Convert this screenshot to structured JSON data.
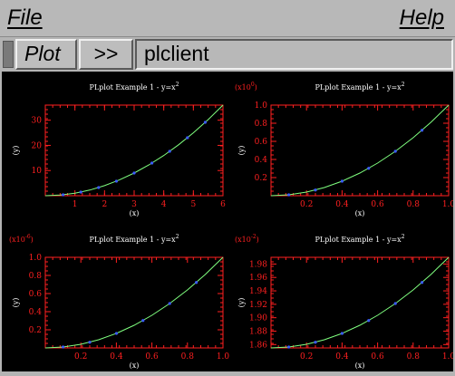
{
  "menubar": {
    "file_label": "File",
    "help_label": "Help"
  },
  "toolbar": {
    "plot_button": "Plot",
    "next_button": ">>",
    "client_label": "plclient"
  },
  "colors": {
    "axes": "#ff2020",
    "curve": "#7fff7f",
    "points": "#3b5bff",
    "title": "#ffffff",
    "background": "#000000"
  },
  "chart_data": [
    {
      "type": "line",
      "title": "PLplot Example 1 - y=x",
      "title_sup": "2",
      "xlabel": "(x)",
      "ylabel": "(y)",
      "xlim": [
        0,
        6
      ],
      "ylim": [
        0,
        36
      ],
      "xticks": [
        "1",
        "2",
        "3",
        "4",
        "5",
        "6"
      ],
      "yticks": [
        "10",
        "20",
        "30"
      ],
      "multiplier": "",
      "series": [
        {
          "x": [
            0,
            0.5,
            1,
            1.5,
            2,
            2.5,
            3,
            3.5,
            4,
            4.5,
            5,
            5.5,
            6
          ],
          "y": [
            0,
            0.25,
            1,
            2.25,
            4,
            6.25,
            9,
            12.25,
            16,
            20.25,
            25,
            30.25,
            36
          ]
        }
      ],
      "points": {
        "x": [
          0.6,
          1.2,
          1.8,
          2.4,
          3.0,
          3.6,
          4.2,
          4.8,
          5.4
        ],
        "y": [
          0.36,
          1.44,
          3.24,
          5.76,
          9.0,
          12.96,
          17.64,
          23.04,
          29.16
        ]
      }
    },
    {
      "type": "line",
      "title": "PLplot Example 1 - y=x",
      "title_sup": "2",
      "xlabel": "(x)",
      "ylabel": "(y)",
      "xlim": [
        0,
        1
      ],
      "ylim": [
        0,
        1
      ],
      "xticks": [
        "0.2",
        "0.4",
        "0.6",
        "0.8",
        "1.0"
      ],
      "yticks": [
        "0.2",
        "0.4",
        "0.6",
        "0.8",
        "1.0"
      ],
      "multiplier": "(x10",
      "multiplier_sup": "0",
      "series": [
        {
          "x": [
            0,
            0.1,
            0.2,
            0.3,
            0.4,
            0.5,
            0.6,
            0.7,
            0.8,
            0.9,
            1.0
          ],
          "y": [
            0,
            0.01,
            0.04,
            0.09,
            0.16,
            0.25,
            0.36,
            0.49,
            0.64,
            0.81,
            1.0
          ]
        }
      ],
      "points": {
        "x": [
          0.1,
          0.25,
          0.4,
          0.55,
          0.7,
          0.85
        ],
        "y": [
          0.01,
          0.0625,
          0.16,
          0.3025,
          0.49,
          0.7225
        ]
      }
    },
    {
      "type": "line",
      "title": "PLplot Example 1 - y=x",
      "title_sup": "2",
      "xlabel": "(x)",
      "ylabel": "(y)",
      "xlim": [
        0,
        1
      ],
      "ylim": [
        0,
        1
      ],
      "xticks": [
        "0.2",
        "0.4",
        "0.6",
        "0.8",
        "1.0"
      ],
      "yticks": [
        "0.2",
        "0.4",
        "0.6",
        "0.8",
        "1.0"
      ],
      "multiplier": "(x10",
      "multiplier_sup": "-6",
      "series": [
        {
          "x": [
            0,
            0.1,
            0.2,
            0.3,
            0.4,
            0.5,
            0.6,
            0.7,
            0.8,
            0.9,
            1.0
          ],
          "y": [
            0,
            0.01,
            0.04,
            0.09,
            0.16,
            0.25,
            0.36,
            0.49,
            0.64,
            0.81,
            1.0
          ]
        }
      ],
      "points": {
        "x": [
          0.1,
          0.25,
          0.4,
          0.55,
          0.7,
          0.85
        ],
        "y": [
          0.01,
          0.0625,
          0.16,
          0.3025,
          0.49,
          0.7225
        ]
      }
    },
    {
      "type": "line",
      "title": "PLplot Example 1 - y=x",
      "title_sup": "2",
      "xlabel": "(x)",
      "ylabel": "(y)",
      "xlim": [
        0,
        1
      ],
      "ylim": [
        1.855,
        1.99
      ],
      "xticks": [
        "0.2",
        "0.4",
        "0.6",
        "0.8",
        "1.0"
      ],
      "yticks": [
        "1.86",
        "1.88",
        "1.90",
        "1.92",
        "1.94",
        "1.96",
        "1.98"
      ],
      "multiplier": "(x10",
      "multiplier_sup": "-2",
      "series": [
        {
          "x": [
            0,
            0.1,
            0.2,
            0.3,
            0.4,
            0.5,
            0.6,
            0.7,
            0.8,
            0.9,
            1.0
          ],
          "y": [
            1.855,
            1.8564,
            1.8604,
            1.8672,
            1.8766,
            1.8888,
            1.9036,
            1.9212,
            1.9414,
            1.9644,
            1.99
          ]
        }
      ],
      "points": {
        "x": [
          0.1,
          0.25,
          0.4,
          0.55,
          0.7,
          0.85
        ],
        "y": [
          1.8564,
          1.8634,
          1.8766,
          1.8958,
          1.9212,
          1.9525
        ]
      }
    }
  ]
}
